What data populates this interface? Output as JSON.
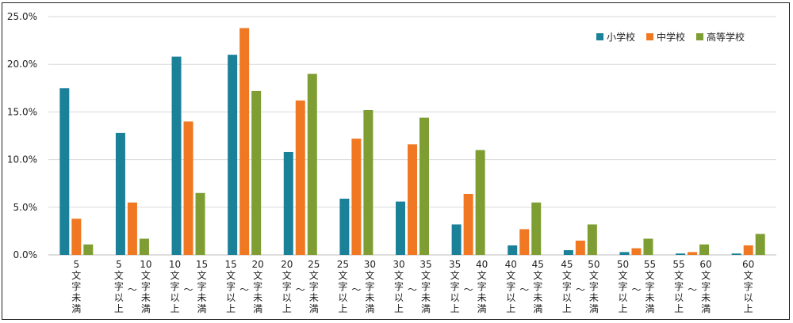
{
  "chart_data": {
    "type": "bar",
    "title": "",
    "xlabel": "",
    "ylabel": "",
    "ylim": [
      0,
      25
    ],
    "y_ticks": [
      "0.0%",
      "5.0%",
      "10.0%",
      "15.0%",
      "20.0%",
      "25.0%"
    ],
    "grid": true,
    "legend_position": "top-right",
    "categories": [
      "5文字未満",
      "5文字以上～10文字未満",
      "10文字以上～15文字未満",
      "15文字以上～20文字未満",
      "20文字以上～25文字未満",
      "25文字以上～30文字未満",
      "30文字以上～35文字未満",
      "35文字以上～40文字未満",
      "40文字以上～45文字未満",
      "45文字以上～50文字未満",
      "50文字以上～55文字未満",
      "55文字以上～60文字未満",
      "60文字以上"
    ],
    "category_labels": [
      {
        "left_num": "5",
        "left_text": "文字未満",
        "right_num": "",
        "right_text": ""
      },
      {
        "left_num": "5",
        "left_text": "文字以上",
        "right_num": "10",
        "right_text": "文字未満"
      },
      {
        "left_num": "10",
        "left_text": "文字以上",
        "right_num": "15",
        "right_text": "文字未満"
      },
      {
        "left_num": "15",
        "left_text": "文字以上",
        "right_num": "20",
        "right_text": "文字未満"
      },
      {
        "left_num": "20",
        "left_text": "文字以上",
        "right_num": "25",
        "right_text": "文字未満"
      },
      {
        "left_num": "25",
        "left_text": "文字以上",
        "right_num": "30",
        "right_text": "文字未満"
      },
      {
        "left_num": "30",
        "left_text": "文字以上",
        "right_num": "35",
        "right_text": "文字未満"
      },
      {
        "left_num": "35",
        "left_text": "文字以上",
        "right_num": "40",
        "right_text": "文字未満"
      },
      {
        "left_num": "40",
        "left_text": "文字以上",
        "right_num": "45",
        "right_text": "文字未満"
      },
      {
        "left_num": "45",
        "left_text": "文字以上",
        "right_num": "50",
        "right_text": "文字未満"
      },
      {
        "left_num": "50",
        "left_text": "文字以上",
        "right_num": "55",
        "right_text": "文字未満"
      },
      {
        "left_num": "55",
        "left_text": "文字以上",
        "right_num": "60",
        "right_text": "文字未満"
      },
      {
        "left_num": "60",
        "left_text": "文字以上",
        "right_num": "",
        "right_text": ""
      }
    ],
    "series": [
      {
        "name": "小学校",
        "color": "#1a8199",
        "values": [
          17.5,
          12.8,
          20.8,
          21.0,
          10.8,
          5.9,
          5.6,
          3.2,
          1.0,
          0.5,
          0.3,
          0.15,
          0.15
        ]
      },
      {
        "name": "中学校",
        "color": "#f07822",
        "values": [
          3.8,
          5.5,
          14.0,
          23.8,
          16.2,
          12.2,
          11.6,
          6.4,
          2.7,
          1.5,
          0.7,
          0.3,
          1.0
        ]
      },
      {
        "name": "高等学校",
        "color": "#7e9d32",
        "values": [
          1.1,
          1.7,
          6.5,
          17.2,
          19.0,
          15.2,
          14.4,
          11.0,
          5.5,
          3.2,
          1.7,
          1.1,
          2.2
        ]
      }
    ]
  }
}
